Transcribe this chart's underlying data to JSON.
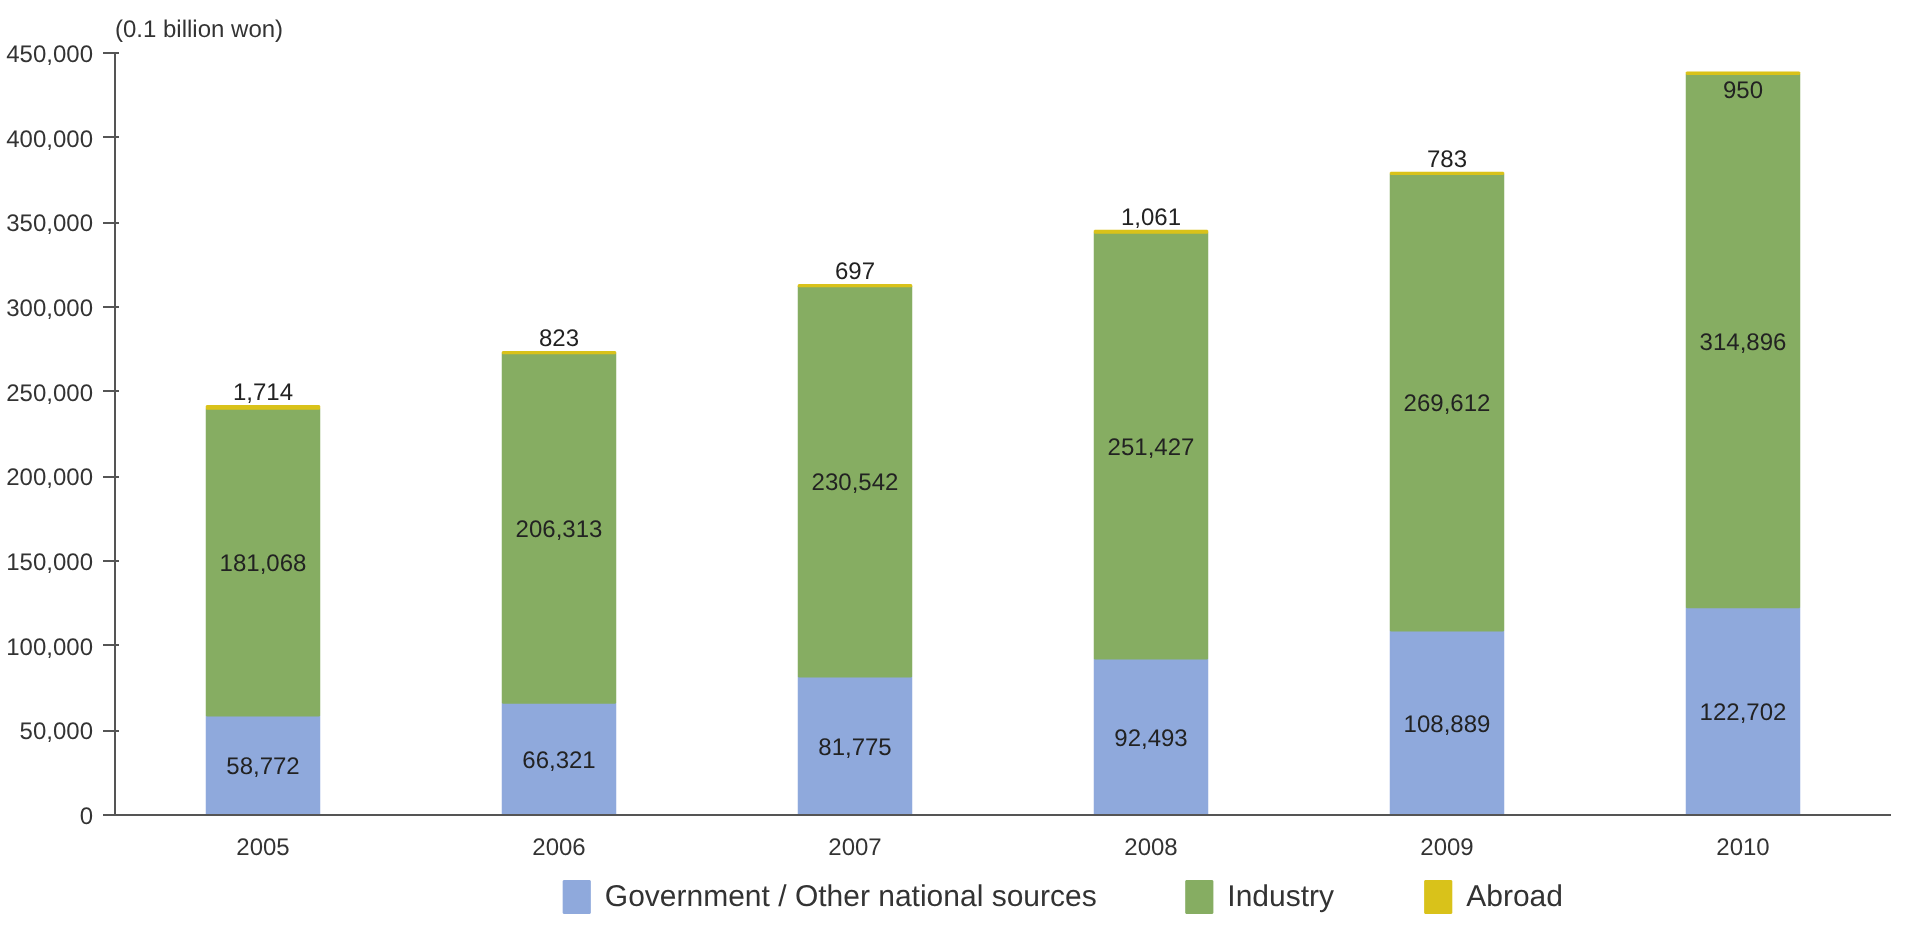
{
  "chart_data": {
    "type": "bar",
    "stacked": true,
    "ylabel": "(0.1 billion won)",
    "categories": [
      "2005",
      "2006",
      "2007",
      "2008",
      "2009",
      "2010"
    ],
    "series": [
      {
        "name": "Government / Other national sources",
        "color": "#8fa9dc",
        "values": [
          58772,
          66321,
          81775,
          92493,
          108889,
          122702
        ],
        "value_labels": [
          "58,772",
          "66,321",
          "81,775",
          "92,493",
          "108,889",
          "122,702"
        ]
      },
      {
        "name": "Industry",
        "color": "#86ad62",
        "values": [
          181068,
          206313,
          230542,
          251427,
          269612,
          314896
        ],
        "value_labels": [
          "181,068",
          "206,313",
          "230,542",
          "251,427",
          "269,612",
          "314,896"
        ]
      },
      {
        "name": "Abroad",
        "color": "#d9c21a",
        "values": [
          1714,
          823,
          697,
          1061,
          783,
          950
        ],
        "value_labels": [
          "1,714",
          "823",
          "697",
          "1,061",
          "783",
          "950"
        ]
      }
    ],
    "ylim": [
      0,
      450000
    ],
    "yticks": [
      0,
      {
        "value": 50000,
        "label": "50,000"
      },
      {
        "value": 100000,
        "label": "100,000"
      },
      {
        "value": 150000,
        "label": "150,000"
      },
      {
        "value": 200000,
        "label": "200,000"
      },
      {
        "value": 250000,
        "label": "250,000"
      },
      {
        "value": 300000,
        "label": "300,000"
      },
      {
        "value": 350000,
        "label": "350,000"
      },
      {
        "value": 400000,
        "label": "400,000"
      },
      {
        "value": 450000,
        "label": "450,000"
      }
    ],
    "grid": false,
    "legend": "bottom"
  }
}
